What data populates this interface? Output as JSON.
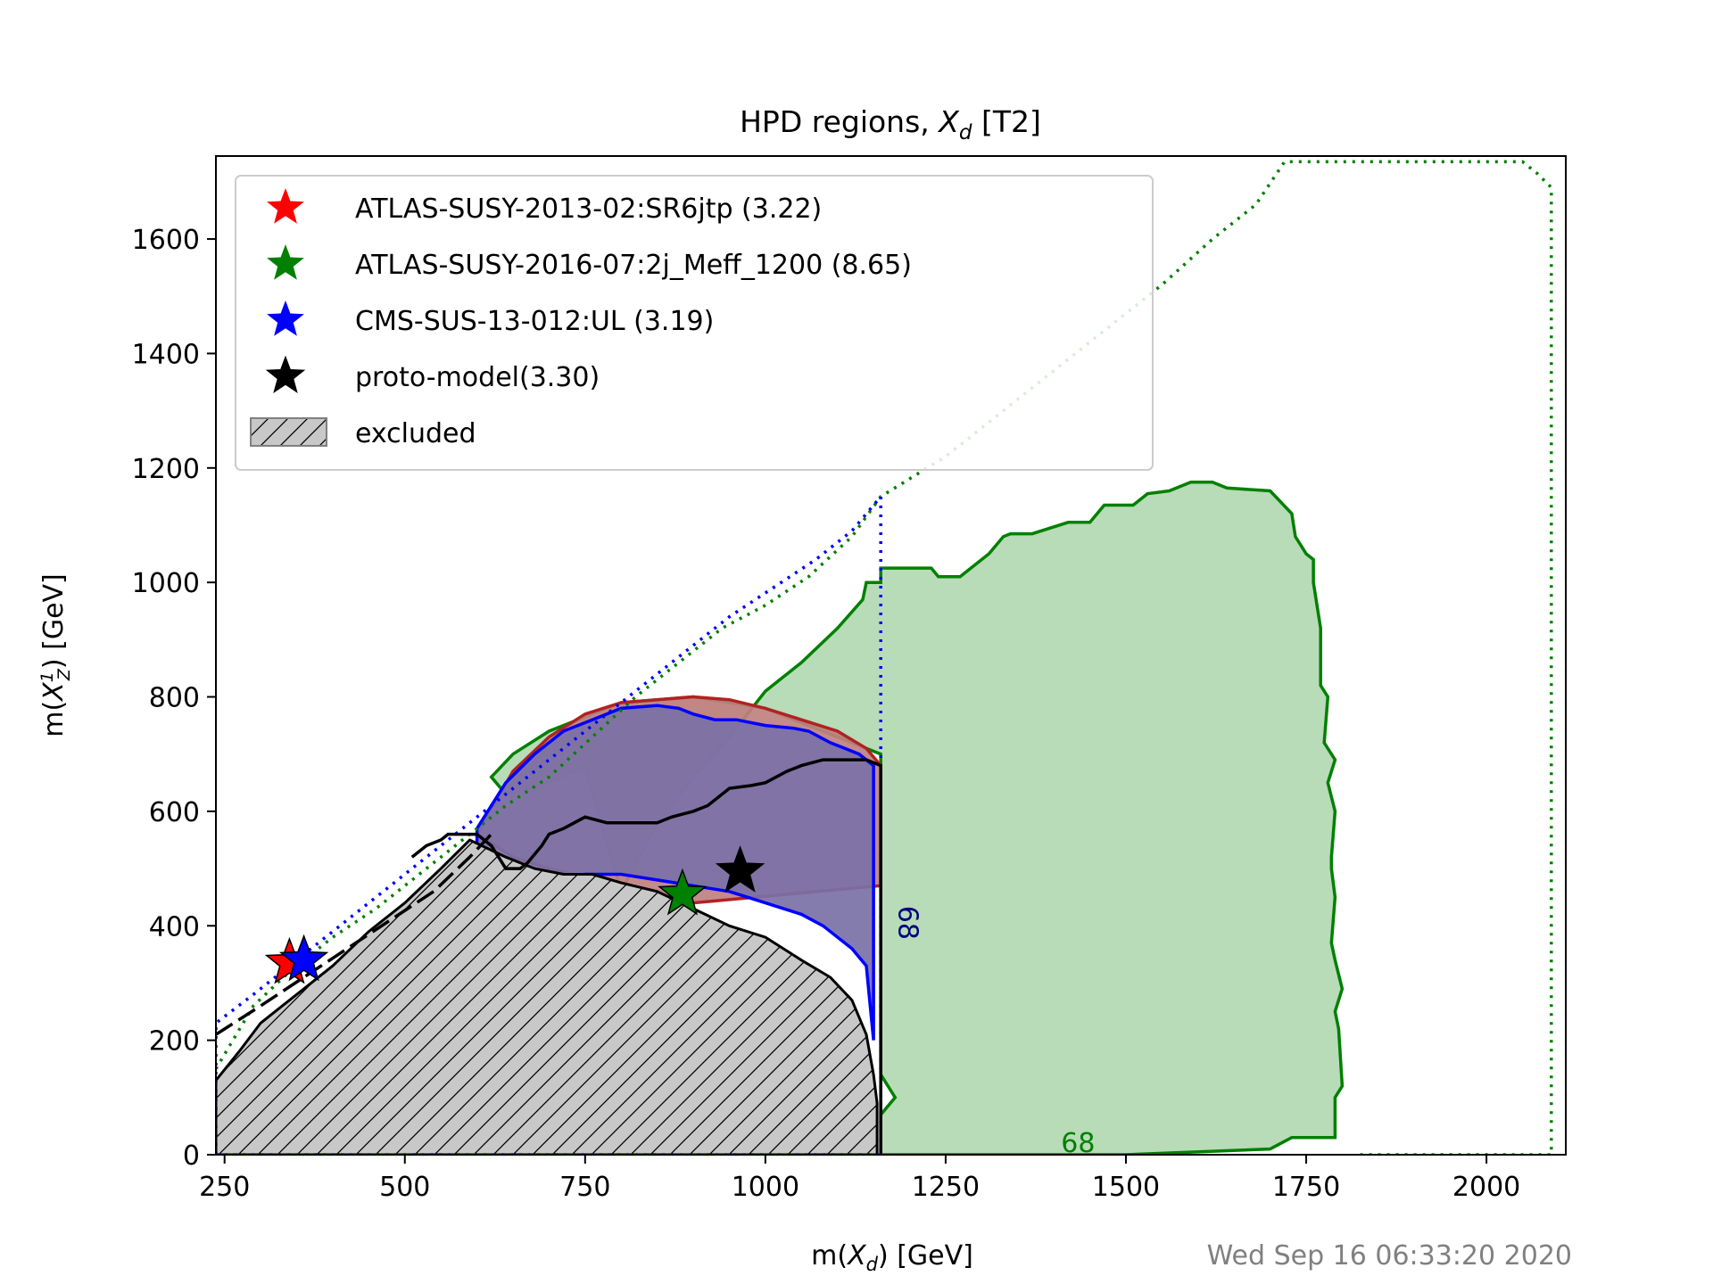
{
  "chart_data": {
    "type": "area",
    "title": "HPD regions, ",
    "title_math": "X",
    "title_sub": "d",
    "title_suffix": " [T2]",
    "xlabel_prefix": "m(",
    "xlabel_math": "X",
    "xlabel_sub": "d",
    "xlabel_suffix": ") [GeV]",
    "ylabel_prefix": "m(",
    "ylabel_math": "X",
    "ylabel_sub": "Z",
    "ylabel_sup": "1",
    "ylabel_suffix": ") [GeV]",
    "xlim": [
      238,
      2110
    ],
    "ylim": [
      0,
      1745
    ],
    "xticks": [
      250,
      500,
      750,
      1000,
      1250,
      1500,
      1750,
      2000
    ],
    "yticks": [
      0,
      200,
      400,
      600,
      800,
      1000,
      1200,
      1400,
      1600
    ],
    "timestamp": "Wed Sep 16 06:33:20 2020",
    "legend_position": "upper-left",
    "legend": [
      {
        "label": "ATLAS-SUSY-2013-02:SR6jtp (3.22)",
        "marker": "star",
        "color": "#ff0000"
      },
      {
        "label": "ATLAS-SUSY-2016-07:2j_Meff_1200 (8.65)",
        "marker": "star",
        "color": "#008000"
      },
      {
        "label": "CMS-SUS-13-012:UL (3.19)",
        "marker": "star",
        "color": "#0000ff"
      },
      {
        "label": "proto-model(3.30)",
        "marker": "star",
        "color": "#000000"
      },
      {
        "label": "excluded",
        "marker": "hatch",
        "color": "#808080"
      }
    ],
    "contour_labels": [
      {
        "text": "68",
        "x": 1410,
        "y": 5,
        "color": "#008000"
      },
      {
        "text": "68",
        "x": 1185,
        "y": 435,
        "color": "#000080"
      }
    ],
    "series": [
      {
        "name": "ATLAS-SUSY-2016-07:2j_Meff_1200 (8.65)",
        "kind": "hpd-68-filled",
        "color": "#008000",
        "fill": "#b2d8b2",
        "points": [
          [
            800,
            460
          ],
          [
            850,
            580
          ],
          [
            900,
            660
          ],
          [
            950,
            730
          ],
          [
            1000,
            810
          ],
          [
            1050,
            860
          ],
          [
            1100,
            920
          ],
          [
            1135,
            970
          ],
          [
            1140,
            1000
          ],
          [
            1160,
            1000
          ],
          [
            1160,
            1025
          ],
          [
            1230,
            1025
          ],
          [
            1240,
            1010
          ],
          [
            1270,
            1010
          ],
          [
            1310,
            1050
          ],
          [
            1330,
            1080
          ],
          [
            1340,
            1085
          ],
          [
            1370,
            1085
          ],
          [
            1420,
            1105
          ],
          [
            1450,
            1105
          ],
          [
            1470,
            1135
          ],
          [
            1510,
            1135
          ],
          [
            1530,
            1155
          ],
          [
            1560,
            1160
          ],
          [
            1590,
            1175
          ],
          [
            1620,
            1175
          ],
          [
            1640,
            1165
          ],
          [
            1700,
            1160
          ],
          [
            1730,
            1120
          ],
          [
            1735,
            1080
          ],
          [
            1750,
            1050
          ],
          [
            1760,
            1040
          ],
          [
            1760,
            1000
          ],
          [
            1770,
            920
          ],
          [
            1770,
            820
          ],
          [
            1780,
            800
          ],
          [
            1775,
            720
          ],
          [
            1790,
            690
          ],
          [
            1780,
            650
          ],
          [
            1790,
            600
          ],
          [
            1785,
            520
          ],
          [
            1785,
            500
          ],
          [
            1790,
            450
          ],
          [
            1785,
            370
          ],
          [
            1790,
            340
          ],
          [
            1800,
            290
          ],
          [
            1790,
            250
          ],
          [
            1795,
            220
          ],
          [
            1800,
            120
          ],
          [
            1790,
            100
          ],
          [
            1790,
            70
          ],
          [
            1790,
            30
          ],
          [
            1730,
            30
          ],
          [
            1700,
            10
          ],
          [
            1500,
            0
          ],
          [
            1160,
            0
          ],
          [
            1160,
            70
          ],
          [
            1180,
            100
          ],
          [
            1160,
            140
          ],
          [
            1160,
            200
          ],
          [
            1160,
            700
          ],
          [
            1000,
            780
          ],
          [
            900,
            800
          ],
          [
            800,
            790
          ],
          [
            700,
            740
          ],
          [
            650,
            700
          ],
          [
            620,
            660
          ],
          [
            640,
            630
          ],
          [
            700,
            650
          ],
          [
            750,
            680
          ],
          [
            800,
            460
          ]
        ]
      },
      {
        "name": "ATLAS-SUSY-2013-02:SR6jtp (3.22)",
        "kind": "hpd-68-filled",
        "color": "#b22222",
        "fill": "#c08080",
        "points": [
          [
            600,
            560
          ],
          [
            650,
            670
          ],
          [
            700,
            730
          ],
          [
            750,
            770
          ],
          [
            800,
            790
          ],
          [
            850,
            795
          ],
          [
            900,
            800
          ],
          [
            950,
            795
          ],
          [
            1000,
            780
          ],
          [
            1050,
            760
          ],
          [
            1100,
            740
          ],
          [
            1140,
            710
          ],
          [
            1160,
            680
          ],
          [
            1160,
            470
          ],
          [
            900,
            440
          ],
          [
            800,
            470
          ],
          [
            700,
            500
          ],
          [
            650,
            520
          ],
          [
            600,
            560
          ]
        ]
      },
      {
        "name": "CMS-SUS-13-012:UL (3.19)",
        "kind": "hpd-68-filled",
        "color": "#0000ff",
        "fill": "#7b71a7",
        "points": [
          [
            600,
            570
          ],
          [
            620,
            610
          ],
          [
            640,
            650
          ],
          [
            680,
            700
          ],
          [
            720,
            740
          ],
          [
            760,
            760
          ],
          [
            800,
            780
          ],
          [
            850,
            785
          ],
          [
            880,
            780
          ],
          [
            900,
            770
          ],
          [
            930,
            760
          ],
          [
            960,
            760
          ],
          [
            1000,
            750
          ],
          [
            1040,
            745
          ],
          [
            1060,
            740
          ],
          [
            1090,
            720
          ],
          [
            1110,
            710
          ],
          [
            1130,
            700
          ],
          [
            1150,
            680
          ],
          [
            1150,
            600
          ],
          [
            1150,
            400
          ],
          [
            1150,
            200
          ],
          [
            1140,
            330
          ],
          [
            1120,
            360
          ],
          [
            1080,
            400
          ],
          [
            1050,
            420
          ],
          [
            1000,
            440
          ],
          [
            950,
            460
          ],
          [
            900,
            470
          ],
          [
            850,
            480
          ],
          [
            800,
            490
          ],
          [
            750,
            490
          ],
          [
            700,
            480
          ],
          [
            650,
            480
          ],
          [
            600,
            520
          ],
          [
            600,
            570
          ]
        ]
      },
      {
        "name": "proto-model(3.30)",
        "kind": "hpd-68-line",
        "color": "#000000",
        "points": [
          [
            1160,
            0
          ],
          [
            1160,
            680
          ],
          [
            1140,
            690
          ],
          [
            1080,
            690
          ],
          [
            1050,
            680
          ],
          [
            1030,
            670
          ],
          [
            1000,
            650
          ],
          [
            980,
            645
          ],
          [
            950,
            640
          ],
          [
            920,
            610
          ],
          [
            900,
            600
          ],
          [
            870,
            590
          ],
          [
            850,
            580
          ],
          [
            800,
            580
          ],
          [
            780,
            580
          ],
          [
            750,
            590
          ],
          [
            720,
            570
          ],
          [
            700,
            560
          ],
          [
            690,
            540
          ],
          [
            670,
            510
          ],
          [
            660,
            500
          ],
          [
            640,
            500
          ],
          [
            630,
            520
          ],
          [
            620,
            540
          ],
          [
            600,
            560
          ],
          [
            560,
            560
          ],
          [
            550,
            550
          ],
          [
            530,
            540
          ],
          [
            510,
            520
          ]
        ]
      },
      {
        "name": "excluded",
        "kind": "excluded-hatched",
        "color": "#000000",
        "fill": "#c8c8c8",
        "points": [
          [
            238,
            0
          ],
          [
            238,
            130
          ],
          [
            270,
            180
          ],
          [
            300,
            230
          ],
          [
            330,
            260
          ],
          [
            360,
            290
          ],
          [
            400,
            330
          ],
          [
            450,
            390
          ],
          [
            500,
            440
          ],
          [
            550,
            500
          ],
          [
            590,
            550
          ],
          [
            640,
            520
          ],
          [
            680,
            500
          ],
          [
            720,
            490
          ],
          [
            760,
            490
          ],
          [
            800,
            475
          ],
          [
            850,
            460
          ],
          [
            900,
            430
          ],
          [
            950,
            400
          ],
          [
            1000,
            380
          ],
          [
            1050,
            340
          ],
          [
            1090,
            310
          ],
          [
            1120,
            270
          ],
          [
            1140,
            210
          ],
          [
            1150,
            140
          ],
          [
            1155,
            90
          ],
          [
            1155,
            0
          ],
          [
            238,
            0
          ]
        ]
      },
      {
        "name": "ATLAS-SUSY-2016-07:2j_Meff_1200 (8.65)",
        "kind": "hpd-95-dotted",
        "color": "#008000",
        "points": [
          [
            238,
            150
          ],
          [
            290,
            260
          ],
          [
            340,
            320
          ],
          [
            400,
            380
          ],
          [
            460,
            430
          ],
          [
            520,
            490
          ],
          [
            580,
            550
          ],
          [
            640,
            610
          ],
          [
            700,
            660
          ],
          [
            760,
            730
          ],
          [
            820,
            800
          ],
          [
            880,
            860
          ],
          [
            940,
            920
          ],
          [
            1000,
            960
          ],
          [
            1060,
            1010
          ],
          [
            1120,
            1080
          ],
          [
            1160,
            1150
          ],
          [
            1250,
            1220
          ],
          [
            1350,
            1320
          ],
          [
            1450,
            1420
          ],
          [
            1550,
            1520
          ],
          [
            1620,
            1600
          ],
          [
            1680,
            1660
          ],
          [
            1720,
            1735
          ],
          [
            2050,
            1735
          ],
          [
            2070,
            1715
          ],
          [
            2090,
            1690
          ],
          [
            2090,
            0
          ],
          [
            1820,
            0
          ]
        ]
      },
      {
        "name": "CMS-SUS-13-012:UL (3.19)",
        "kind": "hpd-95-dotted",
        "color": "#0000ff",
        "points": [
          [
            238,
            0
          ],
          [
            238,
            230
          ],
          [
            290,
            280
          ],
          [
            350,
            340
          ],
          [
            410,
            400
          ],
          [
            470,
            460
          ],
          [
            530,
            520
          ],
          [
            590,
            580
          ],
          [
            650,
            640
          ],
          [
            710,
            700
          ],
          [
            770,
            760
          ],
          [
            830,
            820
          ],
          [
            890,
            880
          ],
          [
            950,
            940
          ],
          [
            1010,
            990
          ],
          [
            1070,
            1040
          ],
          [
            1120,
            1090
          ],
          [
            1160,
            1150
          ],
          [
            1160,
            0
          ],
          [
            238,
            0
          ]
        ]
      },
      {
        "name": "proto-model(3.30)",
        "kind": "hpd-95-dashed",
        "color": "#000000",
        "points": [
          [
            238,
            210
          ],
          [
            300,
            260
          ],
          [
            360,
            310
          ],
          [
            420,
            360
          ],
          [
            480,
            410
          ],
          [
            540,
            460
          ],
          [
            590,
            520
          ],
          [
            620,
            560
          ]
        ]
      }
    ],
    "best_fit_points": [
      {
        "name": "ATLAS-SUSY-2013-02:SR6jtp (3.22)",
        "x": 340,
        "y": 335,
        "color": "#ff0000"
      },
      {
        "name": "ATLAS-SUSY-2016-07:2j_Meff_1200 (8.65)",
        "x": 885,
        "y": 455,
        "color": "#008000"
      },
      {
        "name": "CMS-SUS-13-012:UL (3.19)",
        "x": 360,
        "y": 340,
        "color": "#0000ff"
      },
      {
        "name": "proto-model(3.30)",
        "x": 965,
        "y": 495,
        "color": "#000000"
      }
    ]
  }
}
